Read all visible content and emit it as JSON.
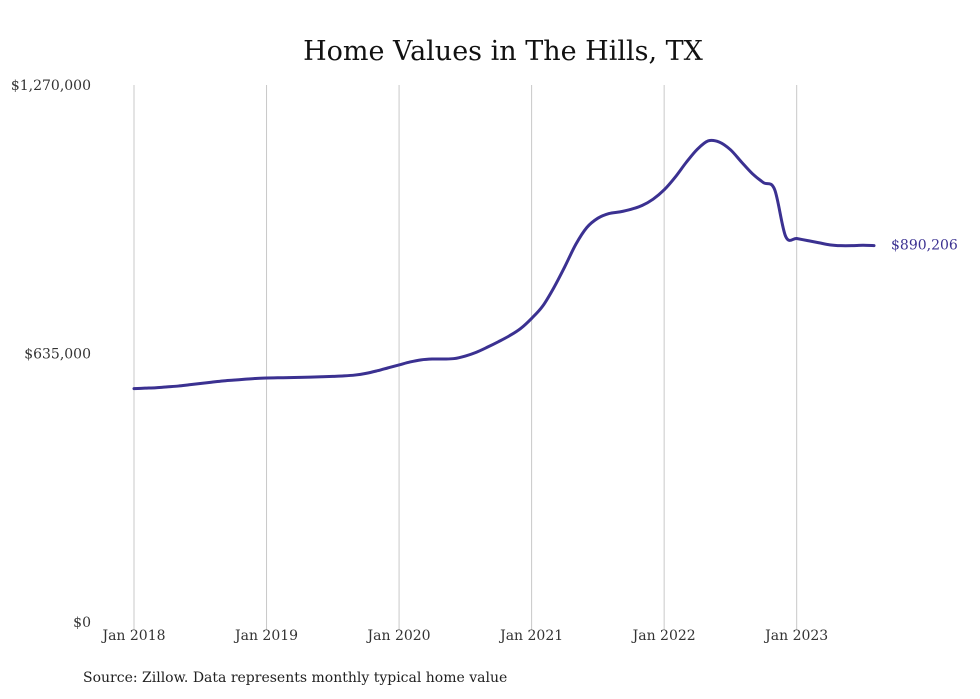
{
  "source_note": "Source: Zillow. Data represents monthly typical home value",
  "colors": {
    "line": "#3b3191",
    "grid": "#c8c8c8",
    "text": "#333333"
  },
  "chart_data": {
    "type": "line",
    "title": "Home Values in The Hills, TX",
    "xlabel": "",
    "ylabel": "",
    "ylim": [
      0,
      1270000
    ],
    "xlim": [
      "2018-01",
      "2023-08"
    ],
    "y_ticks": [
      {
        "value": 0,
        "label": "$0"
      },
      {
        "value": 635000,
        "label": "$635,000"
      },
      {
        "value": 1270000,
        "label": "$1,270,000"
      }
    ],
    "x_ticks": [
      {
        "value": "2018-01",
        "label": "Jan 2018"
      },
      {
        "value": "2019-01",
        "label": "Jan 2019"
      },
      {
        "value": "2020-01",
        "label": "Jan 2020"
      },
      {
        "value": "2021-01",
        "label": "Jan 2021"
      },
      {
        "value": "2022-01",
        "label": "Jan 2022"
      },
      {
        "value": "2023-01",
        "label": "Jan 2023"
      }
    ],
    "grid": "vertical",
    "end_label": "$890,206",
    "series": [
      {
        "x": [
          "2018-01",
          "2018-02",
          "2018-03",
          "2018-04",
          "2018-05",
          "2018-06",
          "2018-07",
          "2018-08",
          "2018-09",
          "2018-10",
          "2018-11",
          "2018-12",
          "2019-01",
          "2019-02",
          "2019-03",
          "2019-04",
          "2019-05",
          "2019-06",
          "2019-07",
          "2019-08",
          "2019-09",
          "2019-10",
          "2019-11",
          "2019-12",
          "2020-01",
          "2020-02",
          "2020-03",
          "2020-04",
          "2020-05",
          "2020-06",
          "2020-07",
          "2020-08",
          "2020-09",
          "2020-10",
          "2020-11",
          "2020-12",
          "2021-01",
          "2021-02",
          "2021-03",
          "2021-04",
          "2021-05",
          "2021-06",
          "2021-07",
          "2021-08",
          "2021-09",
          "2021-10",
          "2021-11",
          "2021-12",
          "2022-01",
          "2022-02",
          "2022-03",
          "2022-04",
          "2022-05",
          "2022-06",
          "2022-07",
          "2022-08",
          "2022-09",
          "2022-10",
          "2022-11",
          "2022-12",
          "2023-01",
          "2023-02",
          "2023-03",
          "2023-04",
          "2023-05",
          "2023-06",
          "2023-07",
          "2023-08"
        ],
        "values": [
          552000,
          553000,
          554000,
          556000,
          558000,
          561000,
          564000,
          567000,
          570000,
          572000,
          574000,
          576000,
          577000,
          577500,
          578000,
          578500,
          579000,
          580000,
          581000,
          582000,
          584000,
          588000,
          594000,
          601000,
          608000,
          615000,
          620000,
          622000,
          622000,
          623000,
          629000,
          638000,
          650000,
          663000,
          677000,
          694000,
          718000,
          747000,
          790000,
          840000,
          893000,
          933000,
          955000,
          966000,
          970000,
          976000,
          985000,
          1000000,
          1022000,
          1052000,
          1087000,
          1118000,
          1138000,
          1135000,
          1117000,
          1088000,
          1060000,
          1039000,
          1023000,
          912000,
          907000,
          902000,
          897000,
          892000,
          890000,
          890000,
          891000,
          890206
        ]
      }
    ]
  }
}
